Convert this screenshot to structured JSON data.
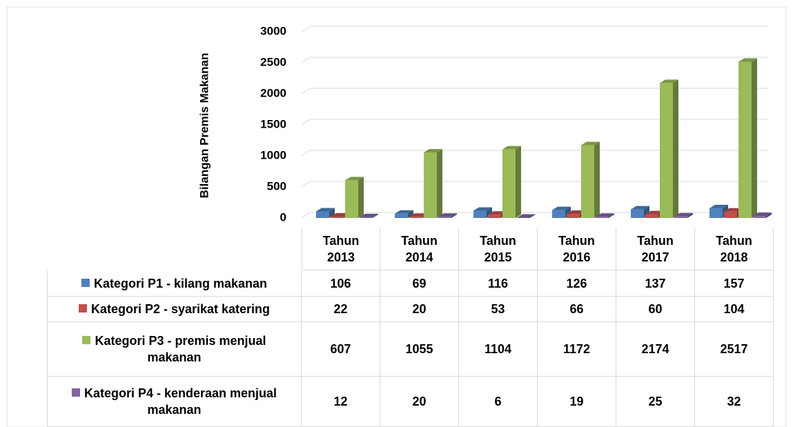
{
  "chart_data": {
    "type": "bar3d",
    "y_label": "Bilangan Premis Makanan",
    "categories": [
      "Tahun 2013",
      "Tahun 2014",
      "Tahun 2015",
      "Tahun 2016",
      "Tahun 2017",
      "Tahun 2018"
    ],
    "series": [
      {
        "name": "Kategori P1 - kilang makanan",
        "color": "#4f81bd",
        "values": [
          106,
          69,
          116,
          126,
          137,
          157
        ]
      },
      {
        "name": "Kategori P2 - syarikat katering",
        "color": "#c0504d",
        "values": [
          22,
          20,
          53,
          66,
          60,
          104
        ]
      },
      {
        "name": "Kategori P3 - premis menjual makanan",
        "color": "#9bbb59",
        "values": [
          607,
          1055,
          1104,
          1172,
          2174,
          2517
        ]
      },
      {
        "name": "Kategori P4 - kenderaan menjual makanan",
        "color": "#8064a2",
        "values": [
          12,
          20,
          6,
          19,
          25,
          32
        ]
      }
    ],
    "ylim": [
      0,
      3000
    ],
    "yticks": [
      0,
      500,
      1000,
      1500,
      2000,
      2500,
      3000
    ],
    "grid": true,
    "data_table": true
  }
}
